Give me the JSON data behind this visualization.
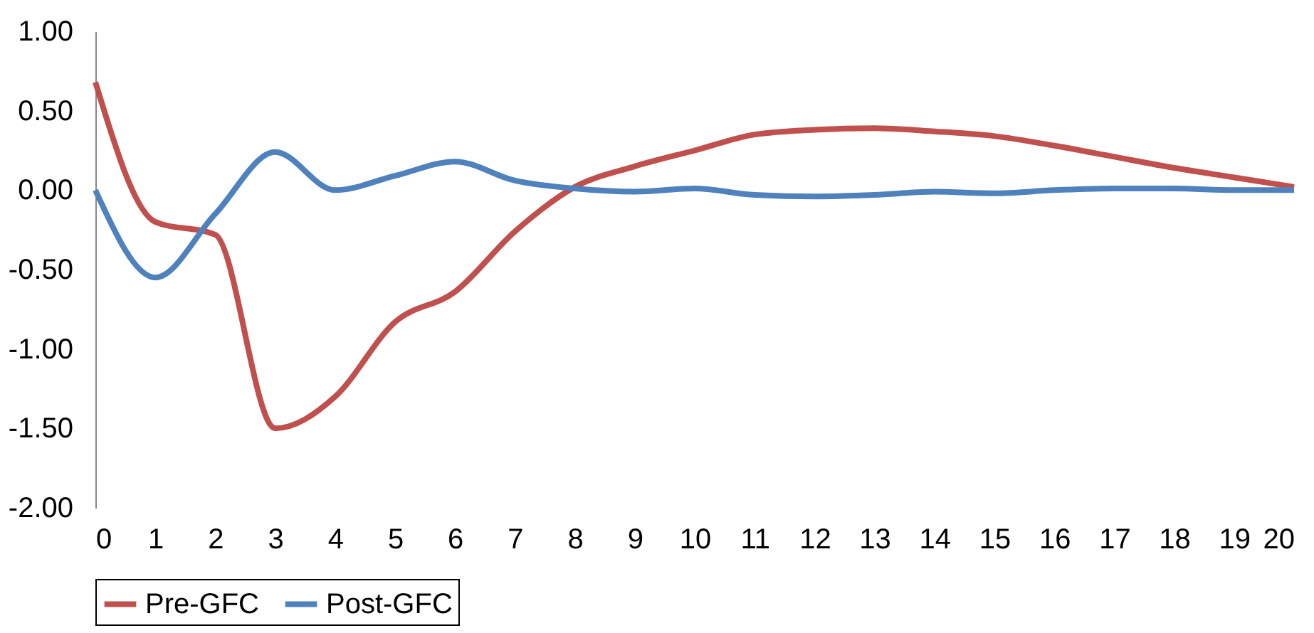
{
  "chart_data": {
    "type": "line",
    "x": [
      0,
      1,
      2,
      3,
      4,
      5,
      6,
      7,
      8,
      9,
      10,
      11,
      12,
      13,
      14,
      15,
      16,
      17,
      18,
      19,
      20
    ],
    "series": [
      {
        "name": "Pre-GFC",
        "color": "#c0504d",
        "values": [
          0.68,
          -0.2,
          -0.28,
          -1.5,
          -1.3,
          -0.83,
          -0.64,
          -0.26,
          0.02,
          0.15,
          0.25,
          0.35,
          0.38,
          0.39,
          0.37,
          0.34,
          0.28,
          0.21,
          0.14,
          0.08,
          0.02
        ]
      },
      {
        "name": "Post-GFC",
        "color": "#4f81bd",
        "values": [
          0,
          -0.55,
          -0.15,
          0.24,
          0,
          0.09,
          0.18,
          0.06,
          0.01,
          -0.01,
          0.01,
          -0.03,
          -0.04,
          -0.03,
          -0.01,
          -0.02,
          0,
          0.01,
          0.01,
          0,
          0
        ]
      }
    ],
    "xlim": [
      0,
      20
    ],
    "xticks": [
      0,
      1,
      2,
      3,
      4,
      5,
      6,
      7,
      8,
      9,
      10,
      11,
      12,
      13,
      14,
      15,
      16,
      17,
      18,
      19,
      20
    ],
    "ylim": [
      -2,
      1
    ],
    "yticks": [
      {
        "value": 1,
        "label": "1.00"
      },
      {
        "value": 0.5,
        "label": "0.50"
      },
      {
        "value": 0,
        "label": "0.00"
      },
      {
        "value": -0.5,
        "label": "-0.50"
      },
      {
        "value": -1,
        "label": "-1.00"
      },
      {
        "value": -1.5,
        "label": "-1.50"
      },
      {
        "value": -2,
        "label": "-2.00"
      }
    ],
    "grid": false,
    "legend": "bottom",
    "marker": "none",
    "line_style": "solid"
  }
}
